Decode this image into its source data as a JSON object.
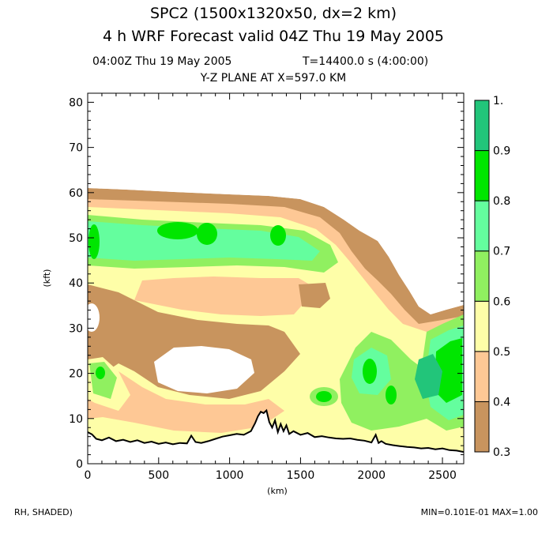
{
  "header": {
    "title_line1": "SPC2 (1500x1320x50, dx=2 km)",
    "title_line2": "4 h WRF Forecast valid 04Z Thu 19 May 2005",
    "time_label": "04:00Z Thu 19 May 2005",
    "elapsed_label": "T=14400.0 s (4:00:00)",
    "plane_label": "Y-Z PLANE AT X=597.0 KM"
  },
  "footer": {
    "field_label": "RH, SHADED)",
    "range_label": "MIN=0.101E-01 MAX=1.00"
  },
  "chart_data": {
    "type": "heatmap",
    "variable": "RH",
    "xlabel": "(km)",
    "ylabel": "(kft)",
    "xlim": [
      0,
      2650
    ],
    "ylim": [
      0,
      82
    ],
    "x_ticks": [
      0,
      500,
      1000,
      1500,
      2000,
      2500
    ],
    "y_ticks": [
      0,
      10,
      20,
      30,
      40,
      50,
      60,
      70,
      80
    ],
    "colorbar": {
      "levels": [
        0.3,
        0.4,
        0.5,
        0.6,
        0.7,
        0.8,
        0.9,
        1.0
      ],
      "tick_labels": [
        "0.3",
        "0.4",
        "0.5",
        "0.6",
        "0.7",
        "0.8",
        "0.9",
        "1."
      ],
      "colors": [
        "#c8945e",
        "#fec895",
        "#fefea8",
        "#90f060",
        "#64fe9e",
        "#00e600",
        "#22c57a"
      ]
    },
    "terrain": {
      "x": [
        0,
        30,
        60,
        100,
        150,
        200,
        250,
        300,
        350,
        400,
        450,
        500,
        550,
        600,
        650,
        700,
        730,
        760,
        800,
        850,
        900,
        950,
        1000,
        1050,
        1100,
        1150,
        1180,
        1200,
        1220,
        1240,
        1260,
        1280,
        1300,
        1320,
        1340,
        1360,
        1380,
        1400,
        1420,
        1450,
        1500,
        1550,
        1600,
        1650,
        1700,
        1750,
        1800,
        1850,
        1900,
        1950,
        2000,
        2030,
        2050,
        2070,
        2100,
        2150,
        2200,
        2250,
        2300,
        2350,
        2400,
        2450,
        2500,
        2550,
        2600,
        2650
      ],
      "kft": [
        7.0,
        6.5,
        5.5,
        5.2,
        5.8,
        5.0,
        5.3,
        4.8,
        5.2,
        4.6,
        4.9,
        4.4,
        4.7,
        4.3,
        4.6,
        4.5,
        6.2,
        4.8,
        4.6,
        5.0,
        5.5,
        6.0,
        6.3,
        6.6,
        6.4,
        7.2,
        9.0,
        10.5,
        11.5,
        11.2,
        11.8,
        9.2,
        8.0,
        9.6,
        7.0,
        8.8,
        7.2,
        8.5,
        6.6,
        7.2,
        6.4,
        6.8,
        5.9,
        6.1,
        5.8,
        5.6,
        5.5,
        5.6,
        5.3,
        5.1,
        4.7,
        6.4,
        4.6,
        5.0,
        4.4,
        4.1,
        3.9,
        3.7,
        3.6,
        3.4,
        3.5,
        3.2,
        3.4,
        3.0,
        2.9,
        2.6
      ]
    }
  }
}
